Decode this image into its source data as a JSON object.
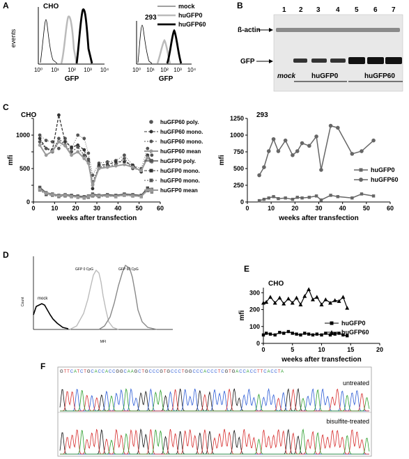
{
  "panel_A": {
    "letter": "A",
    "left_plot": {
      "cell": "CHO",
      "ylabel": "events",
      "xlabel": "GFP",
      "xticks": [
        "10⁰",
        "10¹",
        "10²",
        "10³",
        "10⁴"
      ]
    },
    "right_plot": {
      "cell": "293",
      "xlabel": "GFP",
      "xticks": [
        "10⁰",
        "10¹",
        "10²",
        "10³",
        "10⁴"
      ]
    },
    "legend": [
      "mock",
      "huGFP0",
      "huGFP60"
    ]
  },
  "panel_B": {
    "letter": "B",
    "lanes": [
      "1",
      "2",
      "3",
      "4",
      "5",
      "6",
      "7"
    ],
    "bands": [
      "ß-actin",
      "GFP"
    ],
    "groups": [
      "mock",
      "huGFP0",
      "huGFP60"
    ]
  },
  "panel_C": {
    "letter": "C",
    "left": {
      "cell": "CHO",
      "ylabel": "mfi",
      "xlabel": "weeks after transfection"
    },
    "right": {
      "cell": "293",
      "ylabel": "mfi",
      "xlabel": "weeks after transfection"
    }
  },
  "panel_D": {
    "letter": "D",
    "labels": [
      "mock",
      "GFP 0 CpG",
      "GFP 60 CpG"
    ],
    "ylabel": "Count",
    "xlabel": "MFI"
  },
  "panel_E": {
    "letter": "E",
    "cell": "CHO",
    "ylabel": "mfi",
    "xlabel": "weeks after transfection"
  },
  "panel_F": {
    "letter": "F",
    "top_label": "untreated",
    "bottom_label": "bisulfite-treated",
    "sequence": "GTTCATCTGCACCACCGGCAAGCTGCCCGTGCCCTGGCCCACCCTCGTGACCACCTTCACCTA"
  },
  "chart_data": [
    {
      "type": "line",
      "title": "CHO",
      "xlabel": "weeks after transfection",
      "ylabel": "mfi",
      "xlim": [
        0,
        60
      ],
      "ylim": [
        0,
        1250
      ],
      "xticks": [
        0,
        10,
        20,
        30,
        40,
        50,
        60
      ],
      "yticks": [
        0,
        250,
        500,
        750,
        1000,
        1250
      ],
      "yticklabels": [
        "0",
        "",
        "500",
        "",
        "1000",
        ""
      ],
      "x": [
        3,
        6,
        9,
        12,
        15,
        18,
        21,
        24,
        26,
        28,
        31,
        35,
        39,
        43,
        47,
        51,
        54,
        56
      ],
      "series": [
        {
          "name": "huGFP60 poly.",
          "color": "#555555",
          "values": [
            1000,
            920,
            900,
            800,
            950,
            800,
            1000,
            950,
            730,
            400,
            580,
            600,
            620,
            700,
            550,
            500,
            800,
            700
          ]
        },
        {
          "name": "huGFP60 mono.",
          "color": "#333333",
          "values": [
            950,
            800,
            780,
            1300,
            900,
            820,
            850,
            780,
            600,
            200,
            550,
            560,
            600,
            600,
            550,
            450,
            700,
            600
          ]
        },
        {
          "name": "huGFP60 mono.",
          "color": "#555555",
          "values": [
            900,
            800,
            750,
            950,
            850,
            750,
            820,
            700,
            640,
            300,
            520,
            540,
            560,
            650,
            500,
            480,
            680,
            620
          ]
        },
        {
          "name": "huGFP60 mean",
          "color": "#999999",
          "values": [
            850,
            700,
            760,
            900,
            840,
            700,
            750,
            650,
            580,
            250,
            500,
            520,
            540,
            560,
            520,
            470,
            660,
            600
          ]
        },
        {
          "name": "huGFP0 poly.",
          "color": "#555555",
          "values": [
            220,
            140,
            120,
            100,
            110,
            100,
            90,
            80,
            90,
            120,
            100,
            110,
            100,
            120,
            110,
            100,
            210,
            190
          ]
        },
        {
          "name": "huGFP0 mono.",
          "color": "#333333",
          "values": [
            200,
            120,
            110,
            90,
            100,
            90,
            80,
            70,
            80,
            100,
            90,
            100,
            90,
            110,
            100,
            90,
            190,
            170
          ]
        },
        {
          "name": "huGFP0 mono.",
          "color": "#555555",
          "values": [
            180,
            110,
            100,
            80,
            90,
            80,
            70,
            60,
            70,
            90,
            80,
            90,
            80,
            100,
            90,
            80,
            170,
            150
          ]
        },
        {
          "name": "huGFP0 mean",
          "color": "#999999",
          "values": [
            190,
            130,
            110,
            90,
            100,
            85,
            75,
            65,
            80,
            100,
            90,
            95,
            85,
            105,
            95,
            85,
            180,
            160
          ]
        }
      ]
    },
    {
      "type": "line",
      "title": "293",
      "xlabel": "weeks after transfection",
      "ylabel": "mfi",
      "xlim": [
        0,
        60
      ],
      "ylim": [
        0,
        1250
      ],
      "xticks": [
        0,
        10,
        20,
        30,
        40,
        50,
        60
      ],
      "yticks": [
        0,
        250,
        500,
        750,
        1000,
        1250
      ],
      "x60": [
        5,
        7,
        9,
        11,
        13,
        16,
        19,
        21,
        23,
        26,
        29,
        31,
        35,
        38,
        44,
        48,
        53
      ],
      "x0": [
        5,
        7,
        9,
        11,
        13,
        16,
        19,
        21,
        23,
        26,
        29,
        31,
        35,
        38,
        44,
        48,
        53
      ],
      "series": [
        {
          "name": "huGFP0",
          "values": [
            20,
            40,
            60,
            80,
            50,
            60,
            40,
            70,
            60,
            70,
            90,
            30,
            100,
            80,
            60,
            120,
            90
          ]
        },
        {
          "name": "huGFP60",
          "values": [
            400,
            520,
            760,
            940,
            760,
            920,
            700,
            760,
            880,
            840,
            980,
            480,
            1140,
            1110,
            720,
            760,
            920
          ]
        }
      ]
    },
    {
      "type": "line",
      "title": "CHO",
      "xlabel": "weeks after transfection",
      "ylabel": "mfi",
      "xlim": [
        0,
        20
      ],
      "ylim": [
        0,
        330
      ],
      "xticks": [
        0,
        5,
        10,
        15,
        20
      ],
      "yticks": [
        0,
        100,
        200,
        300
      ],
      "x": [
        0,
        0.5,
        1.2,
        2,
        2.8,
        3.5,
        4.3,
        5,
        5.7,
        6.4,
        7.1,
        7.8,
        8.5,
        9.2,
        10,
        10.7,
        11.5,
        12.3,
        13,
        13.7,
        14.4
      ],
      "series": [
        {
          "name": "huGFP0",
          "values": [
            50,
            60,
            55,
            50,
            65,
            60,
            70,
            60,
            55,
            50,
            60,
            55,
            50,
            55,
            50,
            60,
            50,
            55,
            60,
            50,
            45
          ]
        },
        {
          "name": "huGFP60",
          "values": [
            240,
            245,
            275,
            240,
            270,
            235,
            265,
            240,
            270,
            230,
            280,
            320,
            260,
            275,
            230,
            260,
            240,
            255,
            250,
            275,
            210
          ]
        }
      ]
    }
  ]
}
